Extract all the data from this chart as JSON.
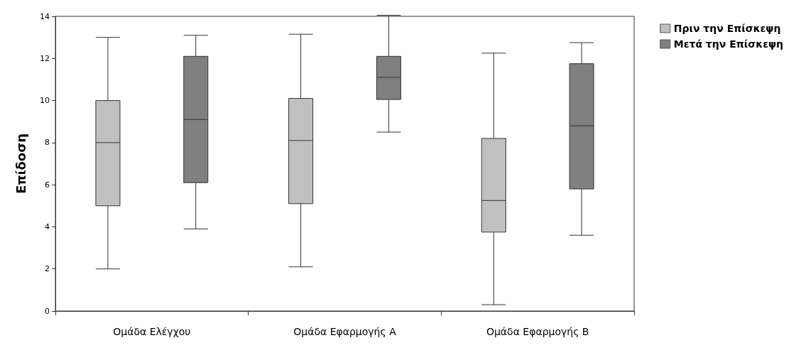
{
  "chart_data": {
    "type": "box",
    "ylabel": "Επίδοση",
    "categories": [
      "Ομάδα Ελέγχου",
      "Ομάδα Εφαρμογής Α",
      "Ομάδα Εφαρμογής Β"
    ],
    "ylim": [
      0,
      14
    ],
    "yticks": [
      0,
      2,
      4,
      6,
      8,
      10,
      12,
      14
    ],
    "grid": false,
    "legend": "top right",
    "series": [
      {
        "name": "Πριν την Επίσκεψη",
        "color": "#c0c0c0",
        "boxes": [
          {
            "low": 2,
            "q1": 5,
            "median": 8,
            "q3": 10,
            "high": 13
          },
          {
            "low": 2.1,
            "q1": 5.1,
            "median": 8.1,
            "q3": 10.1,
            "high": 13.15
          },
          {
            "low": 0.3,
            "q1": 3.75,
            "median": 5.25,
            "q3": 8.2,
            "high": 12.25
          }
        ]
      },
      {
        "name": "Μετά την Επίσκεψη",
        "color": "#808080",
        "boxes": [
          {
            "low": 3.9,
            "q1": 6.1,
            "median": 9.1,
            "q3": 12.1,
            "high": 13.1
          },
          {
            "low": 8.5,
            "q1": 10.05,
            "median": 11.1,
            "q3": 12.1,
            "high": 14.05
          },
          {
            "low": 3.6,
            "q1": 5.8,
            "median": 8.8,
            "q3": 11.75,
            "high": 12.75
          }
        ]
      }
    ]
  }
}
